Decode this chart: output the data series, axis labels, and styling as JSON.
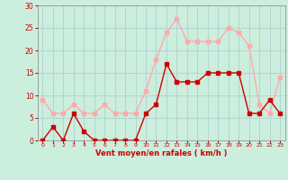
{
  "x": [
    0,
    1,
    2,
    3,
    4,
    5,
    6,
    7,
    8,
    9,
    10,
    11,
    12,
    13,
    14,
    15,
    16,
    17,
    18,
    19,
    20,
    21,
    22,
    23
  ],
  "wind_avg": [
    0,
    3,
    0,
    6,
    2,
    0,
    0,
    0,
    0,
    0,
    6,
    8,
    17,
    13,
    13,
    13,
    15,
    15,
    15,
    15,
    6,
    6,
    9,
    6
  ],
  "wind_gust": [
    9,
    6,
    6,
    8,
    6,
    6,
    8,
    6,
    6,
    6,
    11,
    18,
    24,
    27,
    22,
    22,
    22,
    22,
    25,
    24,
    21,
    8,
    6,
    14
  ],
  "xlabel": "Vent moyen/en rafales ( km/h )",
  "ylim": [
    0,
    30
  ],
  "xlim_min": -0.5,
  "xlim_max": 23.5,
  "yticks": [
    0,
    5,
    10,
    15,
    20,
    25,
    30
  ],
  "xticks": [
    0,
    1,
    2,
    3,
    4,
    5,
    6,
    7,
    8,
    9,
    10,
    11,
    12,
    13,
    14,
    15,
    16,
    17,
    18,
    19,
    20,
    21,
    22,
    23
  ],
  "avg_color": "#cc0000",
  "gust_color": "#ffaaaa",
  "bg_color": "#cceedd",
  "grid_color": "#b0d0d0",
  "text_color": "#cc0000",
  "marker": "s",
  "markersize": 2.5,
  "linewidth": 1.0
}
